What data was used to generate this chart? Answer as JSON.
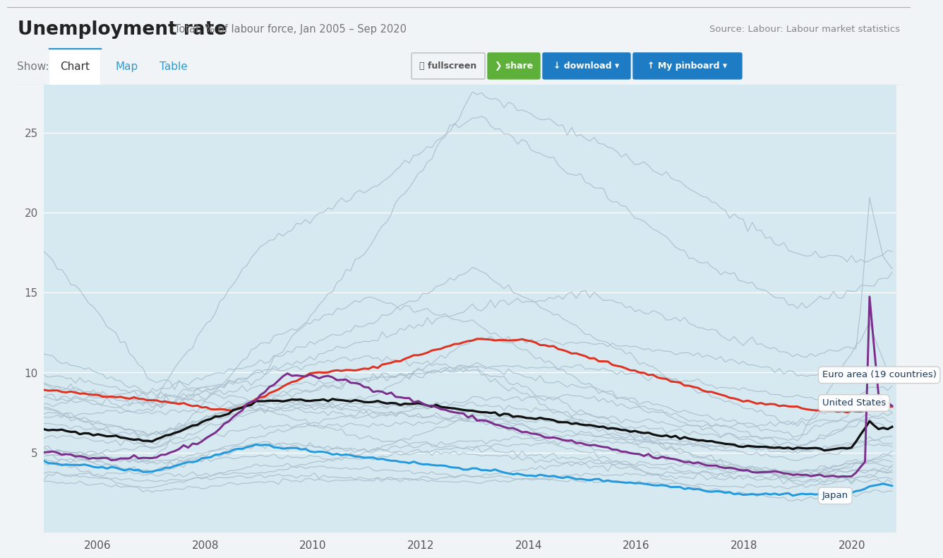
{
  "title": "Unemployment rate",
  "subtitle": "Total, % of labour force, Jan 2005 – Sep 2020",
  "source": "Source: Labour: Labour market statistics",
  "bg_color": "#d6e8f0",
  "outer_bg": "#f0f4f7",
  "nav_bg": "#e8edf2",
  "ylim": [
    0,
    28
  ],
  "yticks": [
    5,
    10,
    15,
    20,
    25
  ],
  "xstart": 2005.0,
  "xend": 2020.83,
  "xticks": [
    2006,
    2008,
    2010,
    2012,
    2014,
    2016,
    2018,
    2020
  ],
  "highlight_colors": {
    "euro_area": "#e03020",
    "united_states": "#7b2d8b",
    "japan": "#2299dd",
    "oecd": "#111111"
  },
  "legend_labels": {
    "euro_area": "Euro area (19 countries)",
    "united_states": "United States",
    "japan": "Japan"
  },
  "nav_tabs": [
    "Chart",
    "Map",
    "Table"
  ],
  "active_tab": "Chart"
}
